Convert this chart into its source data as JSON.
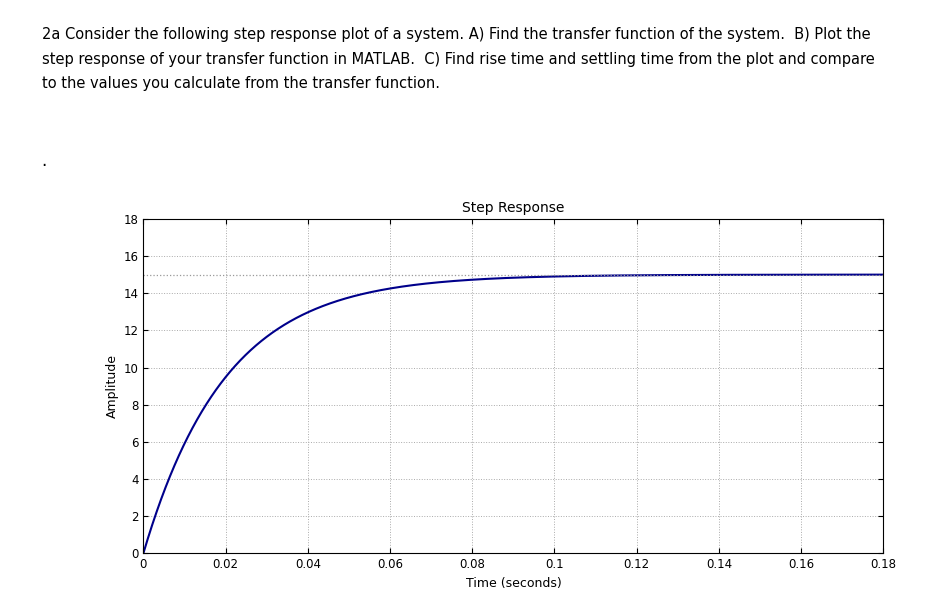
{
  "title": "Step Response",
  "xlabel": "Time (seconds)",
  "ylabel": "Amplitude",
  "text_line1": "2a Consider the following step response plot of a system. A) Find the transfer function of the system.  B) Plot the",
  "text_line2": "step response of your transfer function in MATLAB.  C) Find rise time and settling time from the plot and compare",
  "text_line3": "to the values you calculate from the transfer function.",
  "xlim": [
    0,
    0.18
  ],
  "ylim": [
    0,
    18
  ],
  "yticks": [
    0,
    2,
    4,
    6,
    8,
    10,
    12,
    14,
    16,
    18
  ],
  "xticks": [
    0,
    0.02,
    0.04,
    0.06,
    0.08,
    0.1,
    0.12,
    0.14,
    0.16,
    0.18
  ],
  "steady_state": 15,
  "time_constant": 0.02,
  "gain": 15,
  "line_color": "#00008B",
  "line_width": 1.5,
  "grid_color": "#AAAAAA",
  "dotted_line_y": 15,
  "dotted_color": "#999999",
  "background_color": "#FFFFFF",
  "figure_bg": "#FFFFFF",
  "title_fontsize": 10,
  "label_fontsize": 9,
  "tick_fontsize": 8.5,
  "text_fontsize": 10.5
}
